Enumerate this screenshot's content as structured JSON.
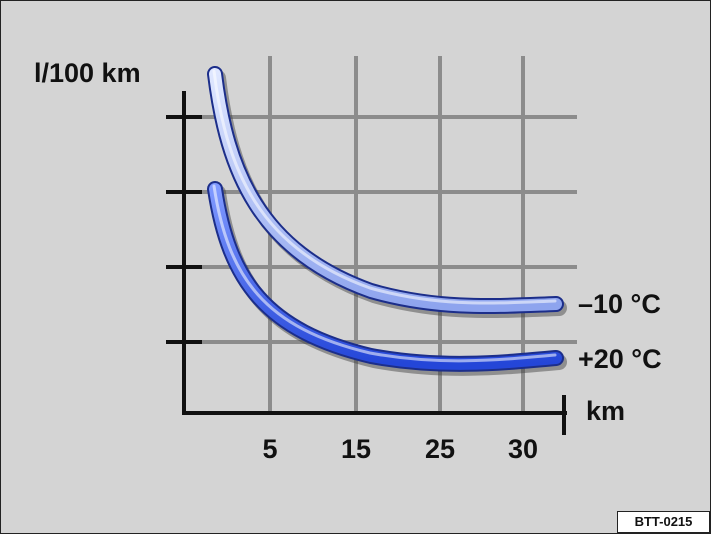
{
  "figure_code": "BTT-0215",
  "colors": {
    "background": "#d4d4d4",
    "grid": "#8c8c8c",
    "axis": "#111111",
    "series_cold": "#9fb4f2",
    "series_warm": "#3a5ee6"
  },
  "chart_data": {
    "type": "line",
    "ylabel": "l/100 km",
    "xlabel": "km",
    "x_tick_labels": [
      "5",
      "15",
      "25",
      "30"
    ],
    "y_tick_labels": [],
    "grid": true,
    "legend": "none",
    "series": [
      {
        "name": "–10 °C",
        "color": "#9fb4f2"
      },
      {
        "name": "+20 °C",
        "color": "#3a5ee6"
      }
    ]
  }
}
